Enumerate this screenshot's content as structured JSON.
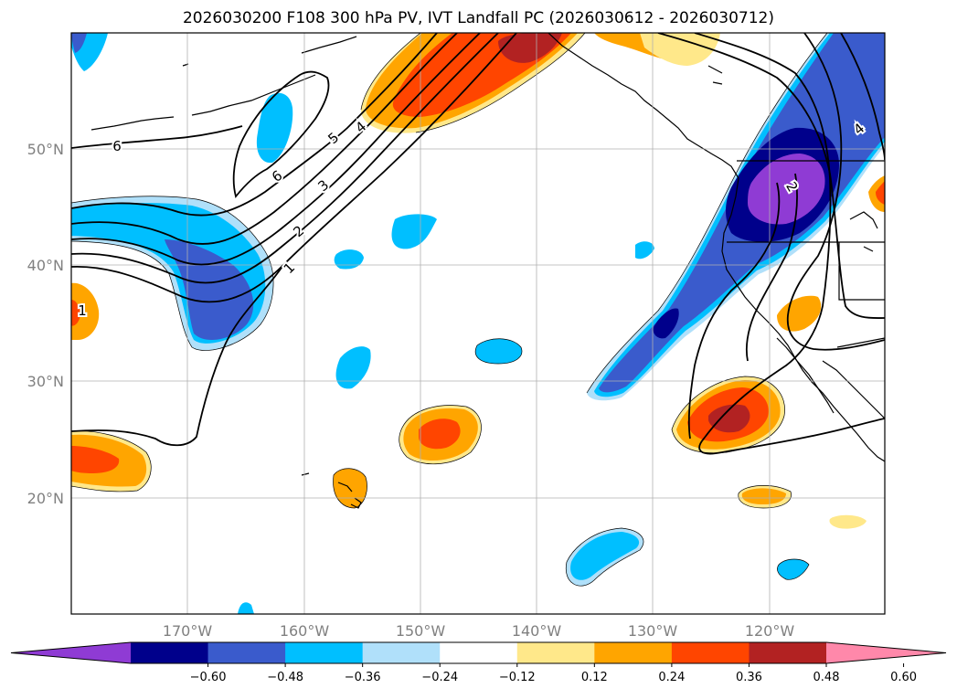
{
  "title": "2026030200 F108 300 hPa PV, IVT Landfall PC (2026030612 - 2026030712)",
  "lat_labels": [
    "50°N",
    "40°N",
    "30°N",
    "20°N"
  ],
  "lon_labels": [
    "170°W",
    "160°W",
    "150°W",
    "140°W",
    "130°W",
    "120°W"
  ],
  "contour_labels": [
    "6",
    "6",
    "5",
    "4",
    "3",
    "2",
    "1",
    "4",
    "2",
    "1"
  ],
  "colorbar": {
    "colors": [
      "#8f3bd4",
      "#00008b",
      "#3a5bcc",
      "#00bfff",
      "#b0e0fa",
      "#ffffff",
      "#ffe88a",
      "#ffa500",
      "#ff4500",
      "#b22222",
      "#ff88aa"
    ],
    "tick_labels": [
      "−0.60",
      "−0.48",
      "−0.36",
      "−0.24",
      "−0.12",
      "0.12",
      "0.24",
      "0.36",
      "0.48",
      "0.60"
    ]
  },
  "fill_colors": {
    "purple": "#8f3bd4",
    "navy": "#00008b",
    "blue": "#3a5bcc",
    "sky": "#00bfff",
    "light": "#b0e0fa",
    "yellow": "#ffe88a",
    "orange": "#ffa500",
    "red_orange": "#ff4500",
    "dark_red": "#b22222"
  }
}
